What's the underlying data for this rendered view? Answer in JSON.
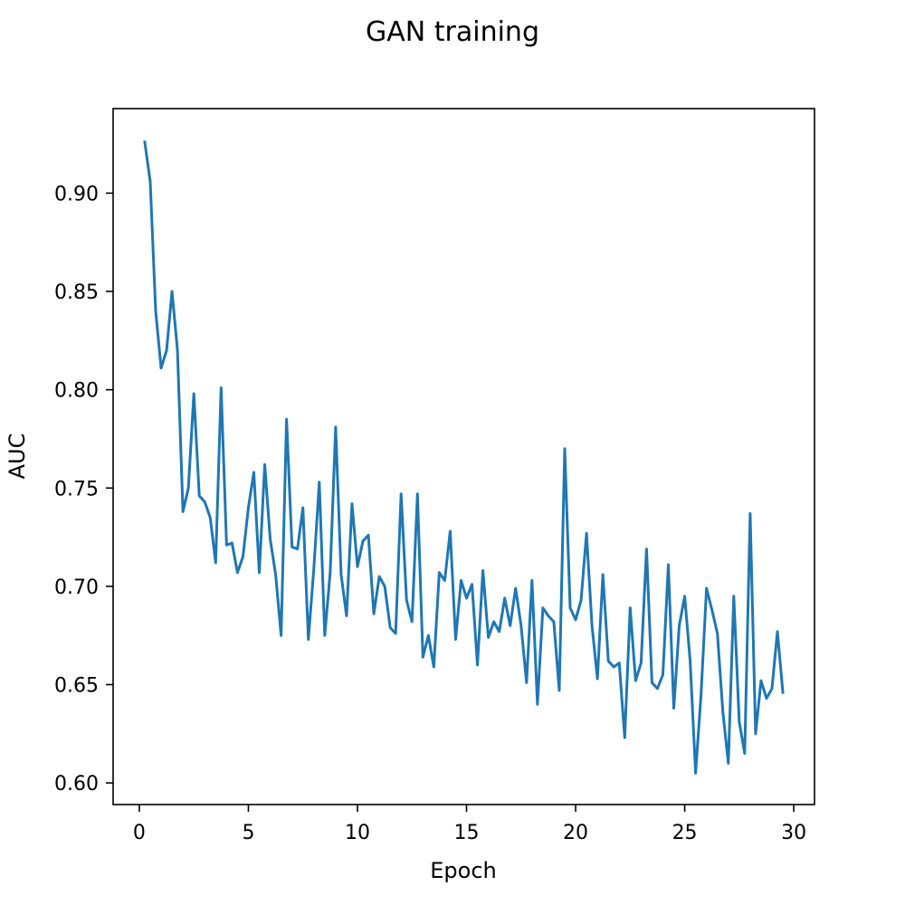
{
  "chart_data": {
    "type": "line",
    "title": "GAN training",
    "xlabel": "Epoch",
    "ylabel": "AUC",
    "xlim": [
      -1.2,
      30.95
    ],
    "ylim": [
      0.589,
      0.943
    ],
    "xticks": [
      0,
      5,
      10,
      15,
      20,
      25,
      30
    ],
    "xtick_labels": [
      "0",
      "5",
      "10",
      "15",
      "20",
      "25",
      "30"
    ],
    "yticks": [
      0.6,
      0.65,
      0.7,
      0.75,
      0.8,
      0.85,
      0.9
    ],
    "ytick_labels": [
      "0.60",
      "0.65",
      "0.70",
      "0.75",
      "0.80",
      "0.85",
      "0.90"
    ],
    "grid": false,
    "legend": "none",
    "colors": {
      "line": "#1f77b4",
      "axes": "#000000"
    },
    "series": [
      {
        "x": [
          0.25,
          0.5,
          0.75,
          1.0,
          1.25,
          1.5,
          1.75,
          2.0,
          2.25,
          2.5,
          2.75,
          3.0,
          3.25,
          3.5,
          3.75,
          4.0,
          4.25,
          4.5,
          4.75,
          5.0,
          5.25,
          5.5,
          5.75,
          6.0,
          6.25,
          6.5,
          6.75,
          7.0,
          7.25,
          7.5,
          7.75,
          8.0,
          8.25,
          8.5,
          8.75,
          9.0,
          9.25,
          9.5,
          9.75,
          10.0,
          10.25,
          10.5,
          10.75,
          11.0,
          11.25,
          11.5,
          11.75,
          12.0,
          12.25,
          12.5,
          12.75,
          13.0,
          13.25,
          13.5,
          13.75,
          14.0,
          14.25,
          14.5,
          14.75,
          15.0,
          15.25,
          15.5,
          15.75,
          16.0,
          16.25,
          16.5,
          16.75,
          17.0,
          17.25,
          17.5,
          17.75,
          18.0,
          18.25,
          18.5,
          18.75,
          19.0,
          19.25,
          19.5,
          19.75,
          20.0,
          20.25,
          20.5,
          20.75,
          21.0,
          21.25,
          21.5,
          21.75,
          22.0,
          22.25,
          22.5,
          22.75,
          23.0,
          23.25,
          23.5,
          23.75,
          24.0,
          24.25,
          24.5,
          24.75,
          25.0,
          25.25,
          25.5,
          25.75,
          26.0,
          26.25,
          26.5,
          26.75,
          27.0,
          27.25,
          27.5,
          27.75,
          28.0,
          28.25,
          28.5,
          28.75,
          29.0,
          29.25,
          29.5
        ],
        "values": [
          0.926,
          0.906,
          0.84,
          0.811,
          0.82,
          0.85,
          0.82,
          0.738,
          0.75,
          0.798,
          0.746,
          0.743,
          0.735,
          0.712,
          0.801,
          0.721,
          0.722,
          0.707,
          0.715,
          0.74,
          0.758,
          0.707,
          0.762,
          0.724,
          0.706,
          0.675,
          0.785,
          0.72,
          0.719,
          0.74,
          0.673,
          0.709,
          0.753,
          0.675,
          0.707,
          0.781,
          0.706,
          0.685,
          0.742,
          0.71,
          0.723,
          0.726,
          0.686,
          0.705,
          0.7,
          0.679,
          0.676,
          0.747,
          0.693,
          0.682,
          0.747,
          0.664,
          0.675,
          0.659,
          0.707,
          0.703,
          0.728,
          0.673,
          0.703,
          0.694,
          0.701,
          0.66,
          0.708,
          0.674,
          0.682,
          0.677,
          0.694,
          0.68,
          0.699,
          0.68,
          0.651,
          0.703,
          0.64,
          0.689,
          0.685,
          0.682,
          0.647,
          0.77,
          0.689,
          0.683,
          0.693,
          0.727,
          0.68,
          0.653,
          0.706,
          0.662,
          0.659,
          0.661,
          0.623,
          0.689,
          0.652,
          0.661,
          0.719,
          0.651,
          0.648,
          0.655,
          0.711,
          0.638,
          0.68,
          0.695,
          0.662,
          0.605,
          0.645,
          0.699,
          0.688,
          0.676,
          0.636,
          0.61,
          0.695,
          0.631,
          0.615,
          0.737,
          0.625,
          0.652,
          0.643,
          0.648,
          0.677,
          0.646
        ]
      }
    ]
  }
}
